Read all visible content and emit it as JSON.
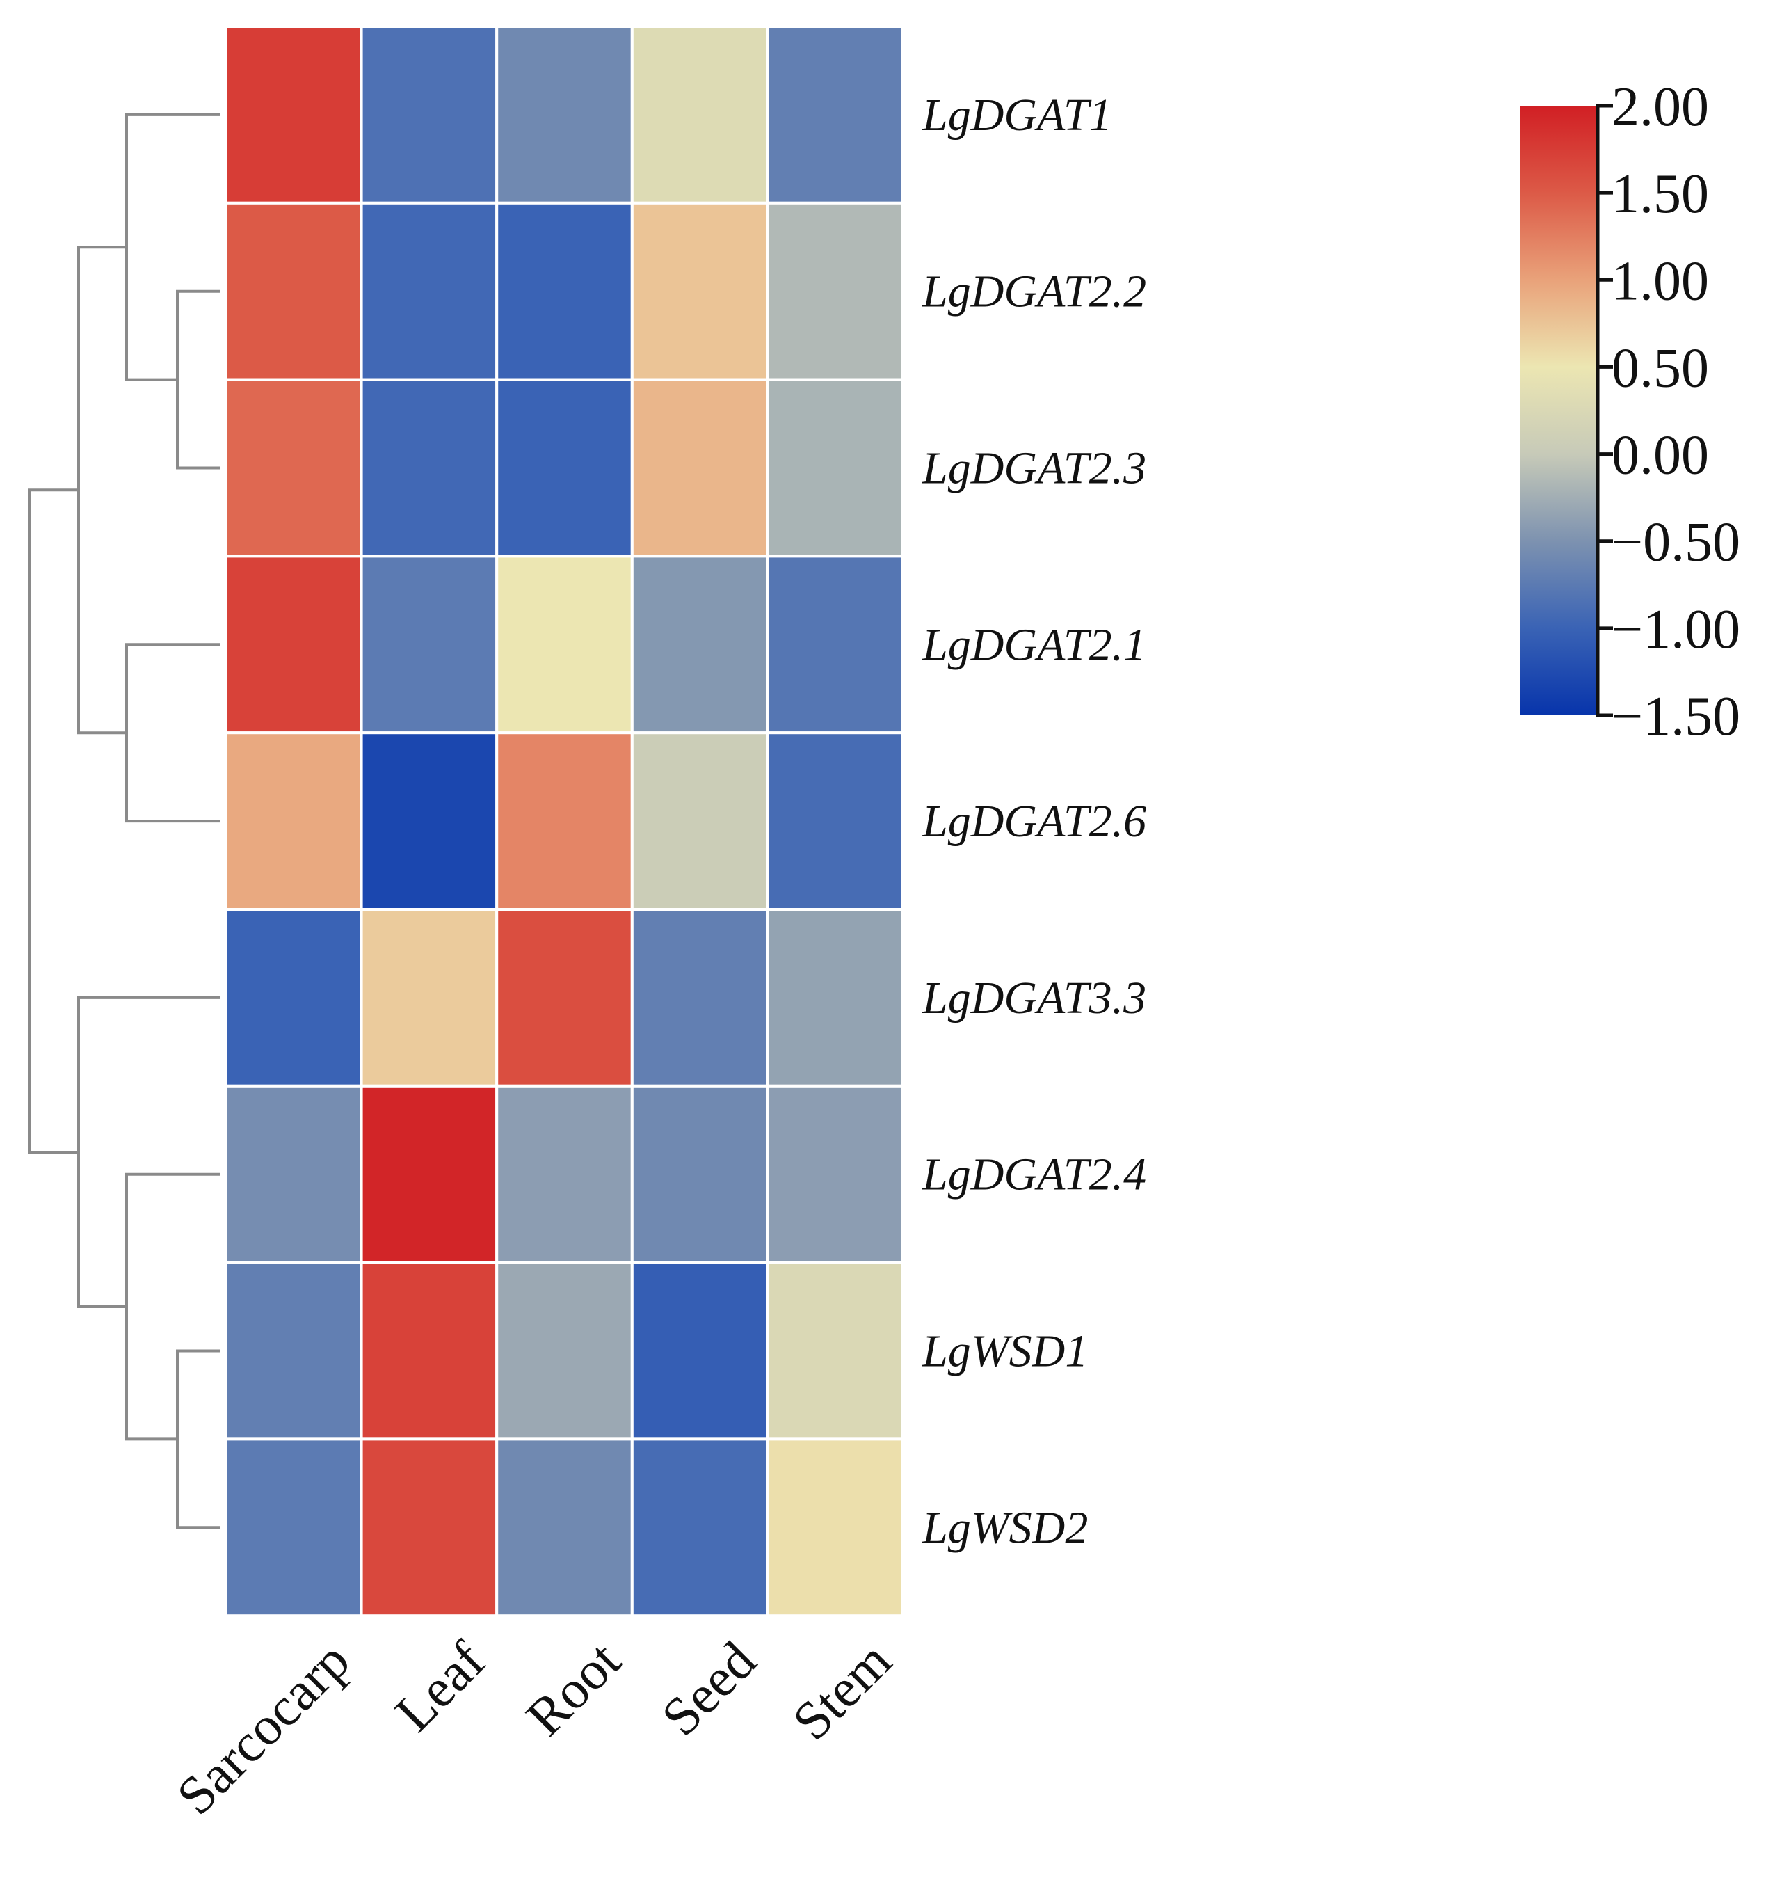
{
  "chart_data": {
    "type": "heatmap",
    "title": "",
    "columns": [
      "Sarcocarp",
      "Leaf",
      "Root",
      "Seed",
      "Stem"
    ],
    "rows": [
      "LgDGAT1",
      "LgDGAT2.2",
      "LgDGAT2.3",
      "LgDGAT2.1",
      "LgDGAT2.6",
      "LgDGAT3.3",
      "LgDGAT2.4",
      "LgWSD1",
      "LgWSD2"
    ],
    "values": [
      [
        1.75,
        -0.85,
        -0.6,
        0.3,
        -0.7
      ],
      [
        1.5,
        -0.95,
        -1.0,
        0.75,
        -0.15
      ],
      [
        1.4,
        -0.95,
        -1.0,
        0.85,
        -0.2
      ],
      [
        1.7,
        -0.75,
        0.5,
        -0.45,
        -0.8
      ],
      [
        0.95,
        -1.3,
        1.2,
        0.05,
        -0.9
      ],
      [
        -1.0,
        0.7,
        1.6,
        -0.7,
        -0.35
      ],
      [
        -0.55,
        1.95,
        -0.4,
        -0.6,
        -0.4
      ],
      [
        -0.7,
        1.7,
        -0.3,
        -1.05,
        0.25
      ],
      [
        -0.75,
        1.65,
        -0.6,
        -0.9,
        0.55
      ]
    ],
    "color_scale": {
      "min": -1.5,
      "max": 2.0,
      "stops": [
        {
          "value": -1.5,
          "color": "#0734ab"
        },
        {
          "value": -1.0,
          "color": "#3a63b5"
        },
        {
          "value": -0.5,
          "color": "#7d92b0"
        },
        {
          "value": 0.0,
          "color": "#c7cab8"
        },
        {
          "value": 0.5,
          "color": "#ece6b2"
        },
        {
          "value": 1.0,
          "color": "#e9a27a"
        },
        {
          "value": 1.5,
          "color": "#dc5a47"
        },
        {
          "value": 2.0,
          "color": "#d11f24"
        }
      ],
      "tick_labels": [
        "2.00",
        "1.50",
        "1.00",
        "0.50",
        "0.00",
        "−0.50",
        "−1.00",
        "−1.50"
      ]
    },
    "dendrogram": {
      "side": "left",
      "merges": [
        [
          "LgDGAT2.2",
          "LgDGAT2.3"
        ],
        [
          "LgDGAT1",
          "LgDGAT2.2+LgDGAT2.3"
        ],
        [
          "LgDGAT2.1",
          "LgDGAT2.6"
        ],
        [
          "LgWSD1",
          "LgWSD2"
        ],
        [
          "LgDGAT2.4",
          "LgWSD1+LgWSD2"
        ],
        [
          "LgDGAT3.3",
          "LgDGAT2.4+LgWSD1+LgWSD2"
        ],
        [
          "upper-cluster-1",
          "upper-cluster-2"
        ],
        [
          "upper-cluster",
          "lower-cluster"
        ]
      ],
      "line_color": "#8a8a8a"
    },
    "grid_line_color": "#ffffff",
    "legend_position": "top-right"
  }
}
